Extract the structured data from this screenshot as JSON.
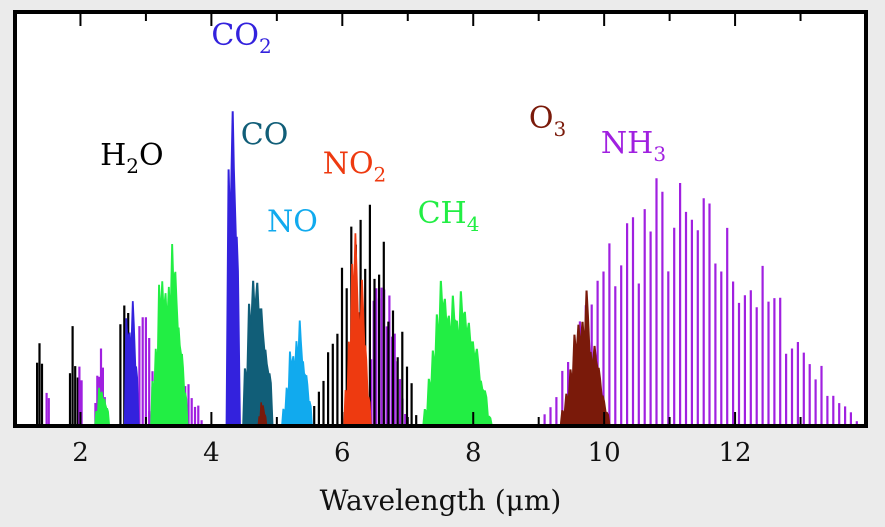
{
  "chart_data": {
    "type": "area",
    "xlabel": "Wavelength (μm)",
    "ylabel": "",
    "xlim": [
      1.0,
      14.0
    ],
    "ylim": [
      0,
      1
    ],
    "x_ticks": [
      2,
      4,
      6,
      8,
      10,
      12
    ],
    "x_tick_labels": [
      "2",
      "4",
      "6",
      "8",
      "10",
      "12"
    ],
    "grid": false,
    "legend": "none",
    "series": [
      {
        "name": "NH3",
        "label_main": "NH",
        "label_sub": "3",
        "color": "#a020e0",
        "style": "lines",
        "bands": [
          [
            9.0,
            13.95,
            10.8,
            0.62,
            0.09
          ],
          [
            6.4,
            7.0,
            6.5,
            0.45,
            0.04
          ],
          [
            3.0,
            3.9,
            3.3,
            0.25,
            0.05
          ],
          [
            2.2,
            2.4,
            2.3,
            0.2,
            0.03
          ]
        ]
      },
      {
        "name": "H2O",
        "label_main": "H",
        "label_mid": "2",
        "label_end": "O",
        "color": "#000000",
        "style": "lines",
        "bands": [
          [
            5.5,
            7.2,
            6.3,
            0.58,
            0.07
          ],
          [
            1.3,
            1.45,
            1.38,
            0.25,
            0.04
          ],
          [
            1.8,
            2.0,
            1.88,
            0.3,
            0.04
          ],
          [
            2.55,
            2.85,
            2.68,
            0.52,
            0.06
          ]
        ]
      },
      {
        "name": "NH3_near",
        "label_main": "",
        "color": "#a020e0",
        "style": "lines",
        "bands": [
          [
            2.75,
            3.2,
            2.95,
            0.28,
            0.05
          ],
          [
            1.95,
            2.05,
            2.0,
            0.18,
            0.03
          ],
          [
            1.45,
            1.55,
            1.5,
            0.1,
            0.03
          ]
        ]
      },
      {
        "name": "CH4",
        "label_main": "CH",
        "label_sub": "4",
        "color": "#22ee44",
        "style": "fill",
        "bands": [
          [
            3.05,
            3.65,
            3.3,
            0.5,
            0.05
          ],
          [
            7.2,
            8.3,
            7.65,
            0.42,
            0.06
          ],
          [
            2.2,
            2.45,
            2.32,
            0.12,
            0.04
          ]
        ]
      },
      {
        "name": "CO2",
        "label_main": "CO",
        "label_sub": "2",
        "color": "#3322dd",
        "style": "fill",
        "bands": [
          [
            4.2,
            4.45,
            4.3,
            0.86,
            0.06
          ],
          [
            2.65,
            2.9,
            2.75,
            0.4,
            0.05
          ]
        ]
      },
      {
        "name": "CO",
        "label_main": "CO",
        "label_sub": "",
        "color": "#115e78",
        "style": "fill",
        "bands": [
          [
            4.45,
            4.95,
            4.65,
            0.6,
            0.06
          ]
        ]
      },
      {
        "name": "NO",
        "label_main": "NO",
        "label_sub": "",
        "color": "#11aaee",
        "style": "fill",
        "bands": [
          [
            5.05,
            5.55,
            5.3,
            0.27,
            0.05
          ]
        ]
      },
      {
        "name": "NO2",
        "label_main": "NO",
        "label_sub": "2",
        "color": "#ee3a10",
        "style": "fill",
        "bands": [
          [
            6.0,
            6.45,
            6.2,
            0.47,
            0.05
          ]
        ]
      },
      {
        "name": "O3",
        "label_main": "O",
        "label_sub": "3",
        "color": "#7a1a0a",
        "style": "fill",
        "bands": [
          [
            9.3,
            10.1,
            9.7,
            0.33,
            0.06
          ],
          [
            4.7,
            4.85,
            4.77,
            0.06,
            0.03
          ]
        ]
      }
    ],
    "annotations": [
      {
        "id": "label-h2o",
        "text_main": "H",
        "text_sub": "2",
        "text_end": "O",
        "color": "#000000",
        "x": 2.3,
        "y": 0.63
      },
      {
        "id": "label-co2",
        "text_main": "CO",
        "text_sub": "2",
        "color": "#3322dd",
        "x": 4.0,
        "y": 0.92
      },
      {
        "id": "label-co",
        "text_main": "CO",
        "text_sub": "",
        "color": "#115e78",
        "x": 4.45,
        "y": 0.68
      },
      {
        "id": "label-no",
        "text_main": "NO",
        "text_sub": "",
        "color": "#11aaee",
        "x": 4.85,
        "y": 0.47
      },
      {
        "id": "label-no2",
        "text_main": "NO",
        "text_sub": "2",
        "color": "#ee3a10",
        "x": 5.7,
        "y": 0.61
      },
      {
        "id": "label-ch4",
        "text_main": "CH",
        "text_sub": "4",
        "color": "#22ee44",
        "x": 7.15,
        "y": 0.49
      },
      {
        "id": "label-o3",
        "text_main": "O",
        "text_sub": "3",
        "color": "#7a1a0a",
        "x": 8.85,
        "y": 0.72
      },
      {
        "id": "label-nh3",
        "text_main": "NH",
        "text_sub": "3",
        "color": "#a020e0",
        "x": 9.95,
        "y": 0.66
      }
    ]
  }
}
